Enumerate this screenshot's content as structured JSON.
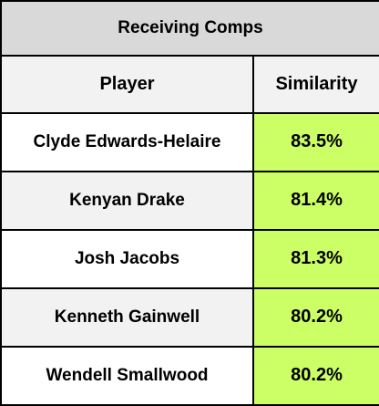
{
  "table": {
    "title": "Receiving Comps",
    "headers": {
      "player": "Player",
      "similarity": "Similarity"
    },
    "rows": [
      {
        "player": "Clyde Edwards-Helaire",
        "similarity": "83.5%"
      },
      {
        "player": "Kenyan Drake",
        "similarity": "81.4%"
      },
      {
        "player": "Josh Jacobs",
        "similarity": "81.3%"
      },
      {
        "player": "Kenneth Gainwell",
        "similarity": "80.2%"
      },
      {
        "player": "Wendell Smallwood",
        "similarity": "80.2%"
      }
    ]
  },
  "colors": {
    "title_bg": "#d9d9d9",
    "header_bg": "#f2f2f2",
    "alt_row_bg": "#f2f2f2",
    "similarity_bg": "#ccff66",
    "border": "#000000"
  }
}
